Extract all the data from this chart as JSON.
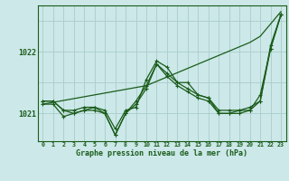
{
  "background_color": "#cce8e8",
  "grid_color": "#aacccc",
  "line_color": "#1a5c1a",
  "xlabel": "Graphe pression niveau de la mer (hPa)",
  "ylabel_ticks": [
    1021,
    1022
  ],
  "xlim": [
    -0.5,
    23.5
  ],
  "ylim": [
    1020.55,
    1022.75
  ],
  "x": [
    0,
    1,
    2,
    3,
    4,
    5,
    6,
    7,
    8,
    9,
    10,
    11,
    12,
    13,
    14,
    15,
    16,
    17,
    18,
    19,
    20,
    21,
    22,
    23
  ],
  "trend_line": [
    1021.15,
    1021.18,
    1021.21,
    1021.24,
    1021.27,
    1021.3,
    1021.33,
    1021.36,
    1021.39,
    1021.42,
    1021.45,
    1021.52,
    1021.59,
    1021.66,
    1021.73,
    1021.8,
    1021.87,
    1021.94,
    1022.01,
    1022.08,
    1022.15,
    1022.25,
    1022.45,
    1022.65
  ],
  "line1": [
    1021.2,
    1021.2,
    1021.05,
    1021.05,
    1021.1,
    1021.1,
    1021.05,
    1020.75,
    1021.05,
    1021.1,
    1021.55,
    1021.85,
    1021.75,
    1021.5,
    1021.5,
    1021.3,
    1021.25,
    1021.05,
    1021.05,
    1021.05,
    1021.1,
    1021.2,
    1022.1,
    1022.6
  ],
  "line2": [
    1021.15,
    1021.15,
    1020.95,
    1021.0,
    1021.05,
    1021.05,
    1021.0,
    1020.65,
    1021.0,
    1021.2,
    1021.45,
    1021.8,
    1021.6,
    1021.45,
    1021.35,
    1021.25,
    1021.2,
    1021.0,
    1021.0,
    1021.0,
    1021.05,
    1021.3,
    1022.05,
    1022.6
  ],
  "line3": [
    1021.2,
    1021.2,
    1021.05,
    1021.0,
    1021.05,
    1021.1,
    1021.0,
    1020.65,
    1021.0,
    1021.15,
    1021.4,
    1021.8,
    1021.65,
    1021.5,
    1021.4,
    1021.3,
    1021.25,
    1021.0,
    1021.0,
    1021.05,
    1021.05,
    1021.2,
    1022.05,
    1022.6
  ]
}
